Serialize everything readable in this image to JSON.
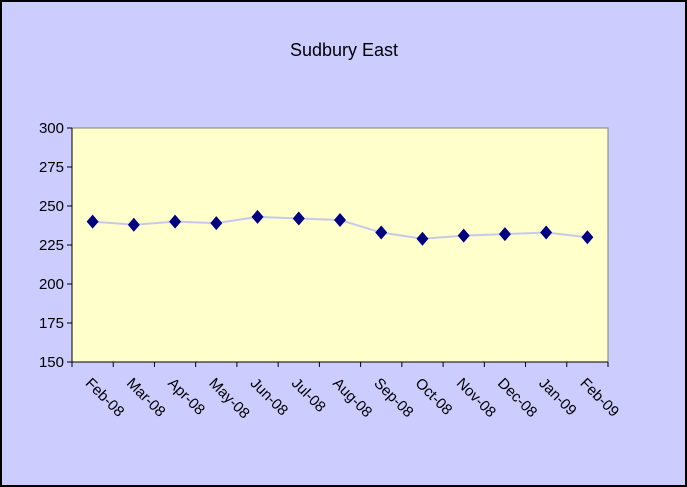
{
  "chart_data": {
    "type": "line",
    "title": "Sudbury East",
    "categories": [
      "Feb-08",
      "Mar-08",
      "Apr-08",
      "May-08",
      "Jun-08",
      "Jul-08",
      "Aug-08",
      "Sep-08",
      "Oct-08",
      "Nov-08",
      "Dec-08",
      "Jan-09",
      "Feb-09"
    ],
    "series": [
      {
        "name": "Sudbury East",
        "color": "#000080",
        "line_color": "#c8c8ee",
        "values": [
          240,
          238,
          240,
          239,
          243,
          242,
          241,
          233,
          229,
          231,
          232,
          233,
          230
        ]
      }
    ],
    "ylim": [
      150,
      300
    ],
    "yticks": [
      150,
      175,
      200,
      225,
      250,
      275,
      300
    ],
    "grid": false,
    "background": "#ccccff",
    "plot_background": "#ffffcc"
  }
}
